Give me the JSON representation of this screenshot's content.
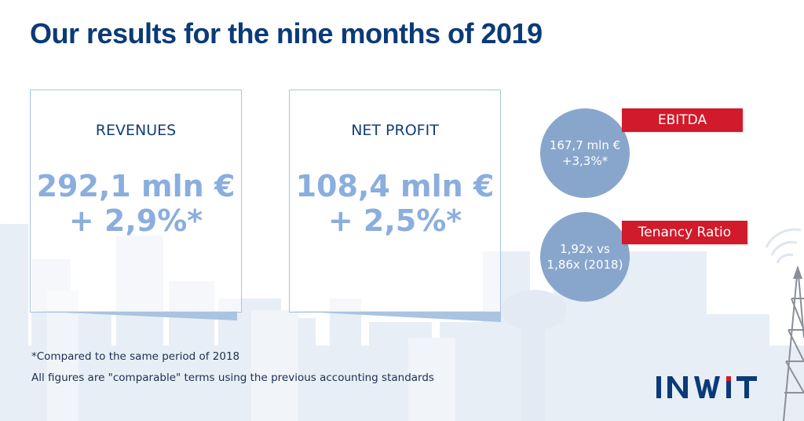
{
  "title": "Our results for the nine months of 2019",
  "cards": {
    "revenues": {
      "label": "REVENUES",
      "value": "292,1 mln €",
      "change": "+ 2,9%*"
    },
    "net_profit": {
      "label": "NET PROFIT",
      "value": "108,4 mln €",
      "change": "+ 2,5%*"
    }
  },
  "kpis": {
    "ebitda": {
      "tag": "EBITDA",
      "line1": "167,7 mln €",
      "line2": "+3,3%*"
    },
    "tenancy": {
      "tag": "Tenancy Ratio",
      "line1": "1,92x vs",
      "line2": "1,86x (2018)"
    }
  },
  "footnotes": {
    "line1": "*Compared to the same period of 2018",
    "line2": "All figures are \"comparable\" terms using the previous accounting standards"
  },
  "logo": {
    "brand": "INWIT"
  },
  "colors": {
    "navy": "#0b3a78",
    "light_blue": "#8aaede",
    "bubble": "#88a6cc",
    "red": "#d11a2a",
    "skyline": "#e9eef6"
  }
}
